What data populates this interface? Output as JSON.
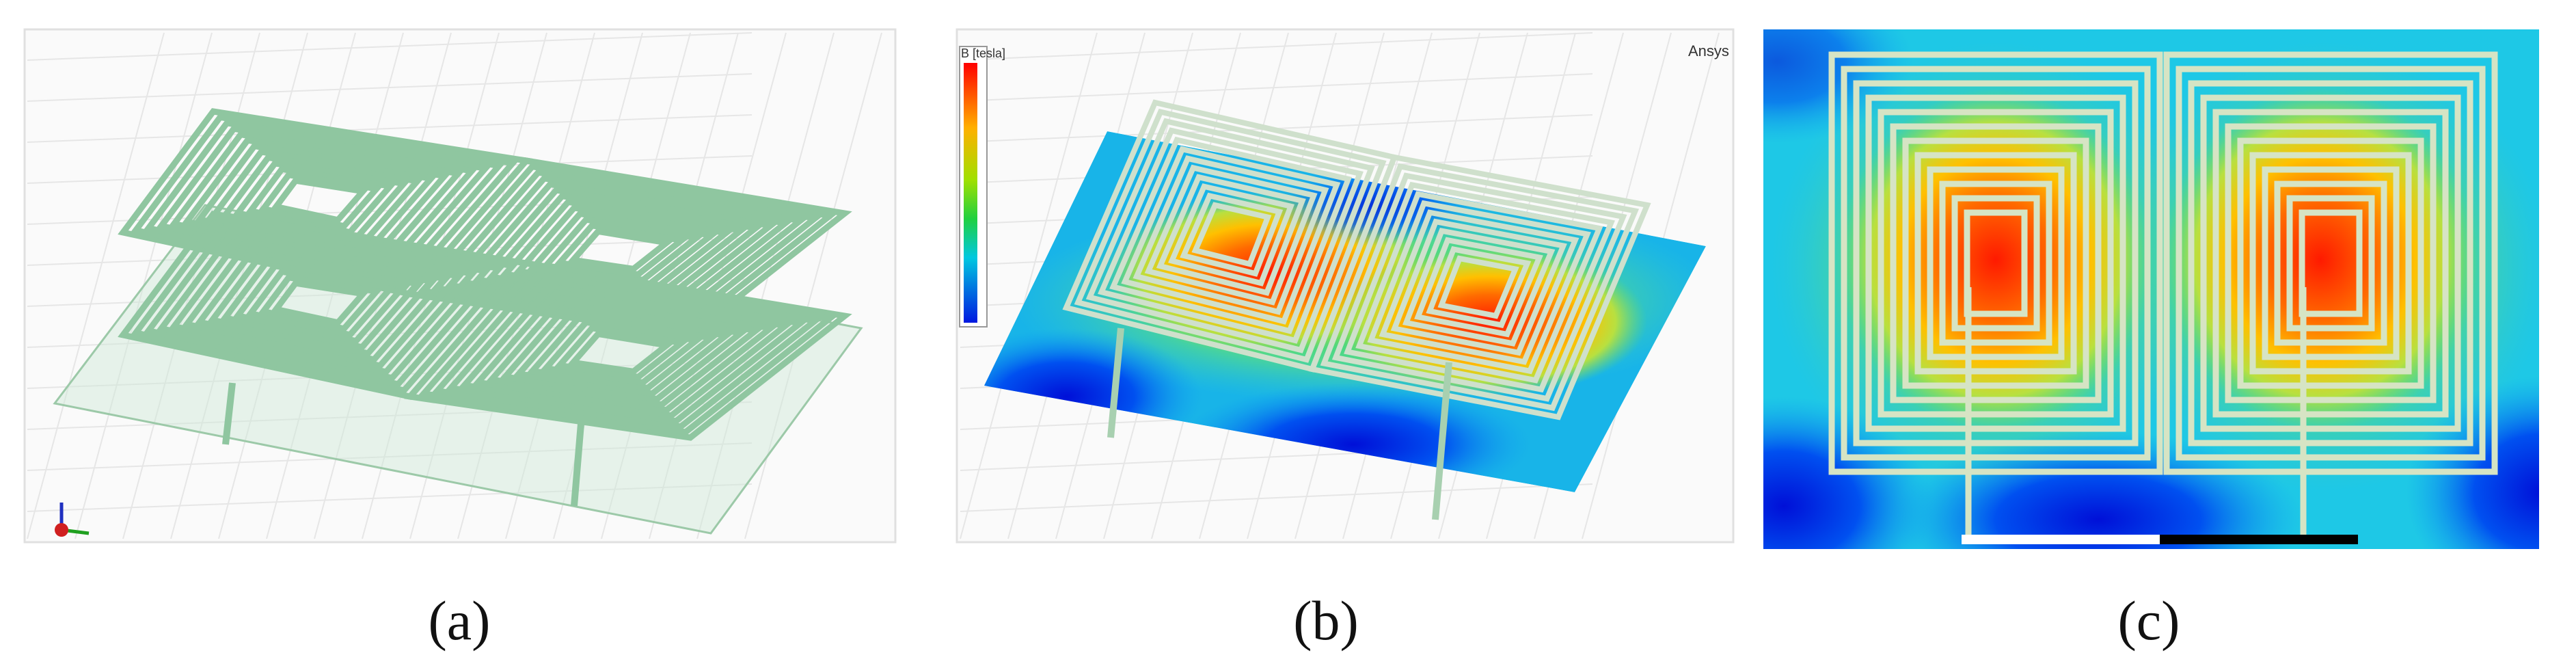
{
  "panels": [
    {
      "caption": "(a)"
    },
    {
      "caption": "(b)",
      "legend_title": "B [tesla]",
      "watermark": "Ansys"
    },
    {
      "caption": "(c)"
    }
  ]
}
